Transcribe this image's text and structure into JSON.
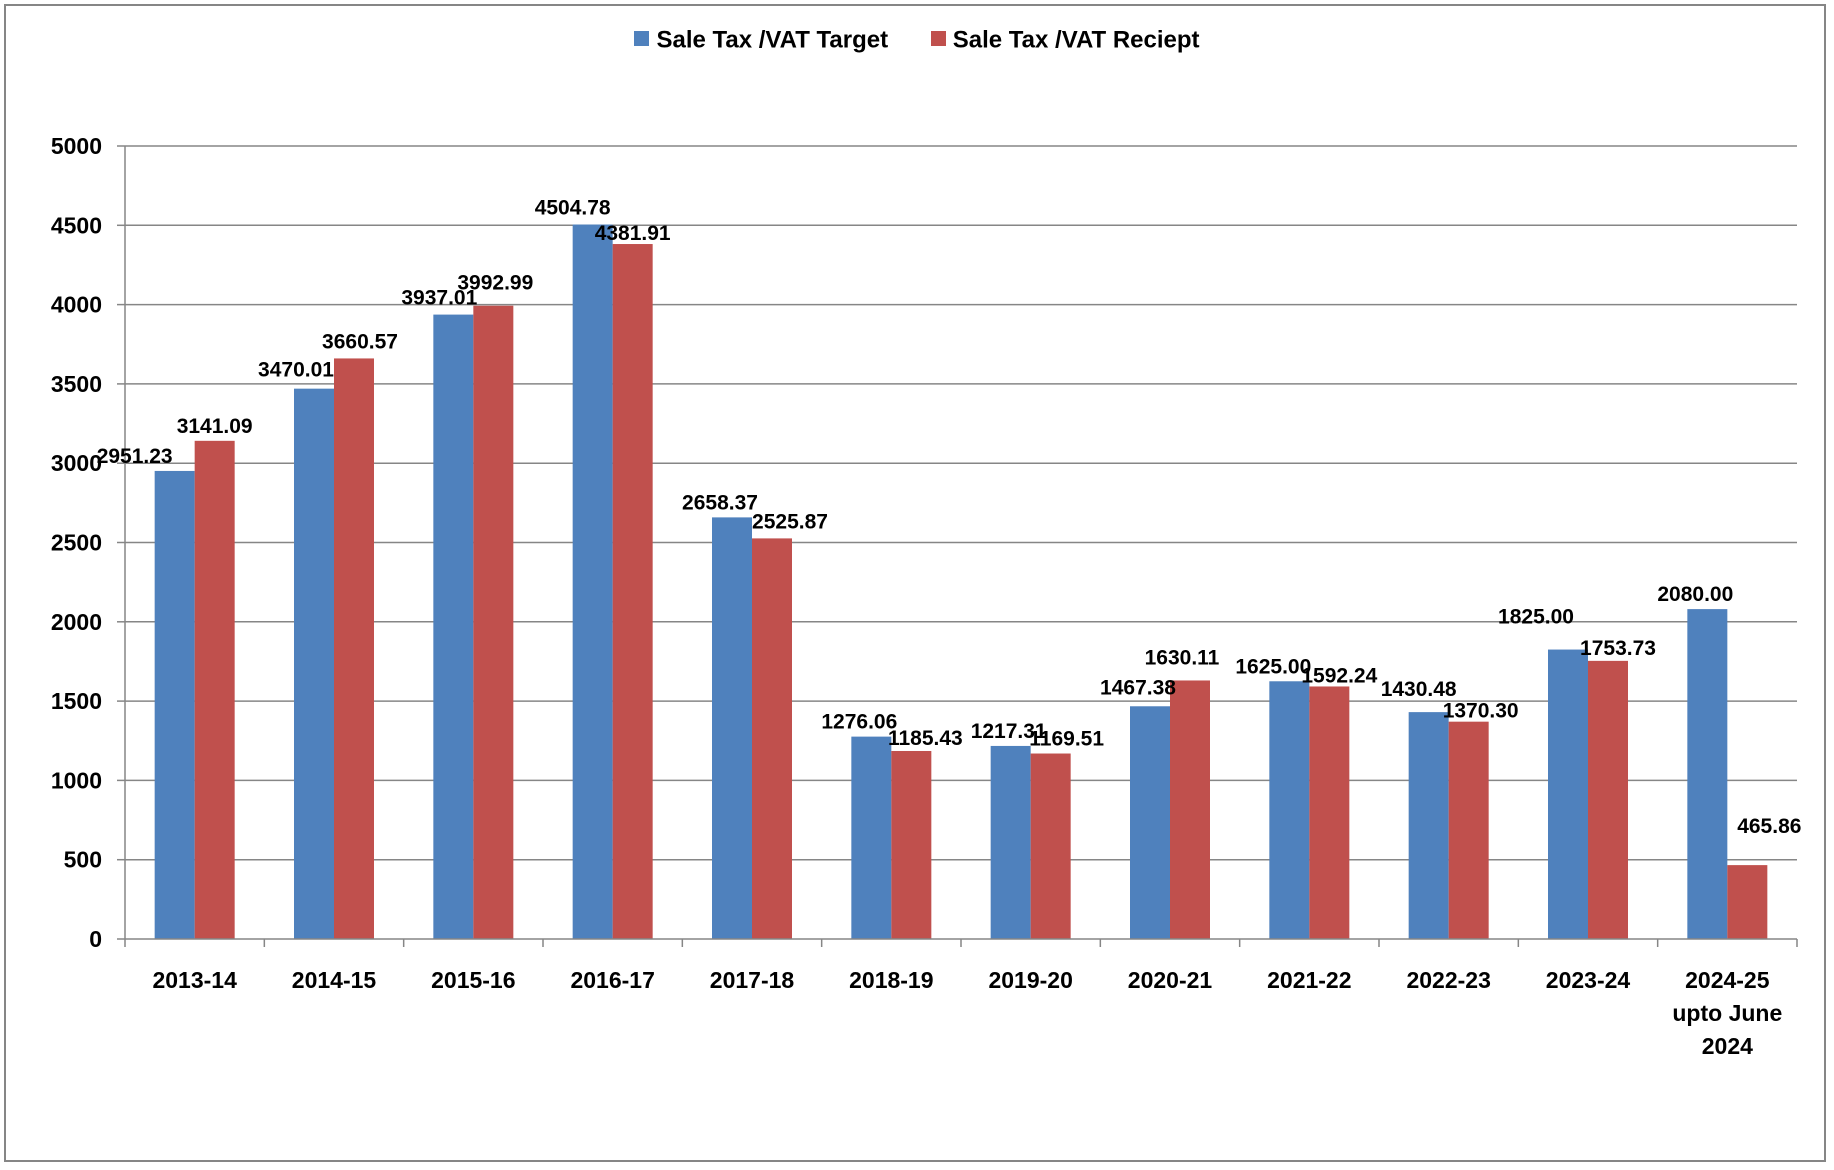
{
  "chart_data": {
    "type": "bar",
    "title": "",
    "xlabel": "",
    "ylabel": "",
    "ylim": [
      0,
      5000
    ],
    "yticks": [
      0,
      500,
      1000,
      1500,
      2000,
      2500,
      3000,
      3500,
      4000,
      4500,
      5000
    ],
    "grid": true,
    "legend_position": "top",
    "categories": [
      "2013-14",
      "2014-15",
      "2015-16",
      "2016-17",
      "2017-18",
      "2018-19",
      "2019-20",
      "2020-21",
      "2021-22",
      "2022-23",
      "2023-24",
      "2024-25 upto June 2024"
    ],
    "series": [
      {
        "name": "Sale Tax /VAT Target",
        "color": "#4F81BD",
        "values": [
          2951.23,
          3470.01,
          3937.01,
          4504.78,
          2658.37,
          1276.06,
          1217.31,
          1467.38,
          1625.0,
          1430.48,
          1825.0,
          2080.0
        ],
        "labels": [
          "2951.23",
          "3470.01",
          "3937.01",
          "4504.78",
          "2658.37",
          "1276.06",
          "1217.31",
          "1467.38",
          "1625.00",
          "1430.48",
          "1825.00",
          "2080.00"
        ]
      },
      {
        "name": "Sale Tax /VAT Reciept",
        "color": "#C0504D",
        "values": [
          3141.09,
          3660.57,
          3992.99,
          4381.91,
          2525.87,
          1185.43,
          1169.51,
          1630.11,
          1592.24,
          1370.3,
          1753.73,
          465.86
        ],
        "labels": [
          "3141.09",
          "3660.57",
          "3992.99",
          "4381.91",
          "2525.87",
          "1185.43",
          "1169.51",
          "1630.11",
          "1592.24",
          "1370.30",
          "1753.73",
          "465.86"
        ]
      }
    ]
  }
}
